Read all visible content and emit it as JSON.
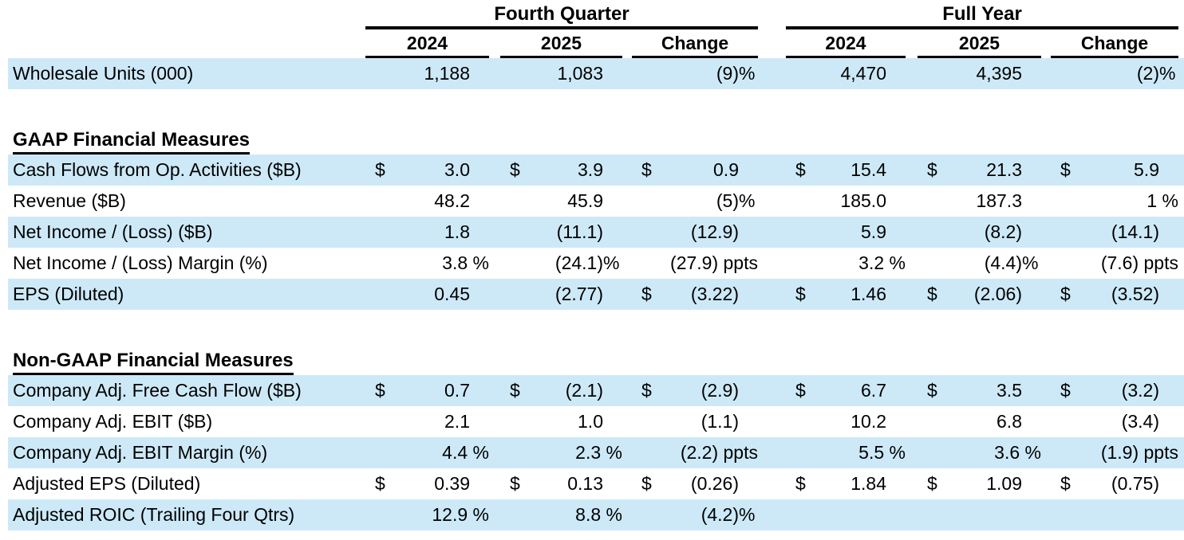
{
  "header": {
    "groups": [
      {
        "label": "Fourth Quarter",
        "subcolumns": [
          "2024",
          "2025",
          "Change"
        ]
      },
      {
        "label": "Full Year",
        "subcolumns": [
          "2024",
          "2025",
          "Change"
        ]
      }
    ]
  },
  "colors": {
    "row_highlight": "#CDE9F8",
    "text": "#000000",
    "rule": "#000000"
  },
  "table": {
    "rows": [
      {
        "kind": "data",
        "shaded": true,
        "label": "Wholesale Units (000)",
        "cells": [
          {
            "n": "1,188"
          },
          {
            "n": "1,083"
          },
          {
            "n": "(9)",
            "s": "%"
          },
          {
            "n": "4,470"
          },
          {
            "n": "4,395"
          },
          {
            "n": "(2)",
            "s": "%"
          }
        ]
      },
      {
        "kind": "gap"
      },
      {
        "kind": "section",
        "label": "GAAP Financial Measures"
      },
      {
        "kind": "data",
        "shaded": true,
        "label": "Cash Flows from Op. Activities ($B)",
        "cells": [
          {
            "c": "$",
            "n": "3.0"
          },
          {
            "c": "$",
            "n": "3.9"
          },
          {
            "c": "$",
            "n": "0.9"
          },
          {
            "c": "$",
            "n": "15.4"
          },
          {
            "c": "$",
            "n": "21.3"
          },
          {
            "c": "$",
            "n": "5.9"
          }
        ]
      },
      {
        "kind": "data",
        "shaded": false,
        "label": "Revenue ($B)",
        "cells": [
          {
            "n": "48.2"
          },
          {
            "n": "45.9"
          },
          {
            "n": "(5)",
            "s": "%"
          },
          {
            "n": "185.0"
          },
          {
            "n": "187.3"
          },
          {
            "n": "1",
            "s": " %"
          }
        ]
      },
      {
        "kind": "data",
        "shaded": true,
        "label": "Net Income / (Loss) ($B)",
        "cells": [
          {
            "n": "1.8"
          },
          {
            "n": "(11.1)"
          },
          {
            "n": "(12.9)"
          },
          {
            "n": "5.9"
          },
          {
            "n": "(8.2)"
          },
          {
            "n": "(14.1)"
          }
        ]
      },
      {
        "kind": "data",
        "shaded": false,
        "label": "Net Income / (Loss) Margin (%)",
        "cells": [
          {
            "n": "3.8",
            "s": " %"
          },
          {
            "n": "(24.1)",
            "s": "%"
          },
          {
            "n": "(27.9)",
            "s": " ppts"
          },
          {
            "n": "3.2",
            "s": " %"
          },
          {
            "n": "(4.4)",
            "s": "%"
          },
          {
            "n": "(7.6)",
            "s": " ppts"
          }
        ]
      },
      {
        "kind": "data",
        "shaded": true,
        "label": "EPS (Diluted)",
        "cells": [
          {
            "n": "0.45"
          },
          {
            "n": "(2.77)"
          },
          {
            "c": "$",
            "n": "(3.22)"
          },
          {
            "c": "$",
            "n": "1.46"
          },
          {
            "c": "$",
            "n": "(2.06)"
          },
          {
            "c": "$",
            "n": "(3.52)"
          }
        ]
      },
      {
        "kind": "gap"
      },
      {
        "kind": "section",
        "label": "Non-GAAP Financial Measures"
      },
      {
        "kind": "data",
        "shaded": true,
        "label": "Company Adj. Free Cash Flow ($B)",
        "cells": [
          {
            "c": "$",
            "n": "0.7"
          },
          {
            "c": "$",
            "n": "(2.1)"
          },
          {
            "c": "$",
            "n": "(2.9)"
          },
          {
            "c": "$",
            "n": "6.7"
          },
          {
            "c": "$",
            "n": "3.5"
          },
          {
            "c": "$",
            "n": "(3.2)"
          }
        ]
      },
      {
        "kind": "data",
        "shaded": false,
        "label": "Company Adj. EBIT ($B)",
        "cells": [
          {
            "n": "2.1"
          },
          {
            "n": "1.0"
          },
          {
            "n": "(1.1)"
          },
          {
            "n": "10.2"
          },
          {
            "n": "6.8"
          },
          {
            "n": "(3.4)"
          }
        ]
      },
      {
        "kind": "data",
        "shaded": true,
        "label": "Company Adj. EBIT Margin (%)",
        "cells": [
          {
            "n": "4.4",
            "s": " %"
          },
          {
            "n": "2.3",
            "s": " %"
          },
          {
            "n": "(2.2)",
            "s": " ppts"
          },
          {
            "n": "5.5",
            "s": " %"
          },
          {
            "n": "3.6",
            "s": " %"
          },
          {
            "n": "(1.9)",
            "s": " ppts"
          }
        ]
      },
      {
        "kind": "data",
        "shaded": false,
        "label": "Adjusted EPS (Diluted)",
        "cells": [
          {
            "c": "$",
            "n": "0.39"
          },
          {
            "c": "$",
            "n": "0.13"
          },
          {
            "c": "$",
            "n": "(0.26)"
          },
          {
            "c": "$",
            "n": "1.84"
          },
          {
            "c": "$",
            "n": "1.09"
          },
          {
            "c": "$",
            "n": "(0.75)"
          }
        ]
      },
      {
        "kind": "data",
        "shaded": true,
        "label": "Adjusted ROIC (Trailing Four Qtrs)",
        "cells": [
          {
            "n": "12.9",
            "s": " %"
          },
          {
            "n": "8.8",
            "s": " %"
          },
          {
            "n": "(4.2)",
            "s": "%"
          },
          {},
          {},
          {}
        ]
      }
    ]
  }
}
